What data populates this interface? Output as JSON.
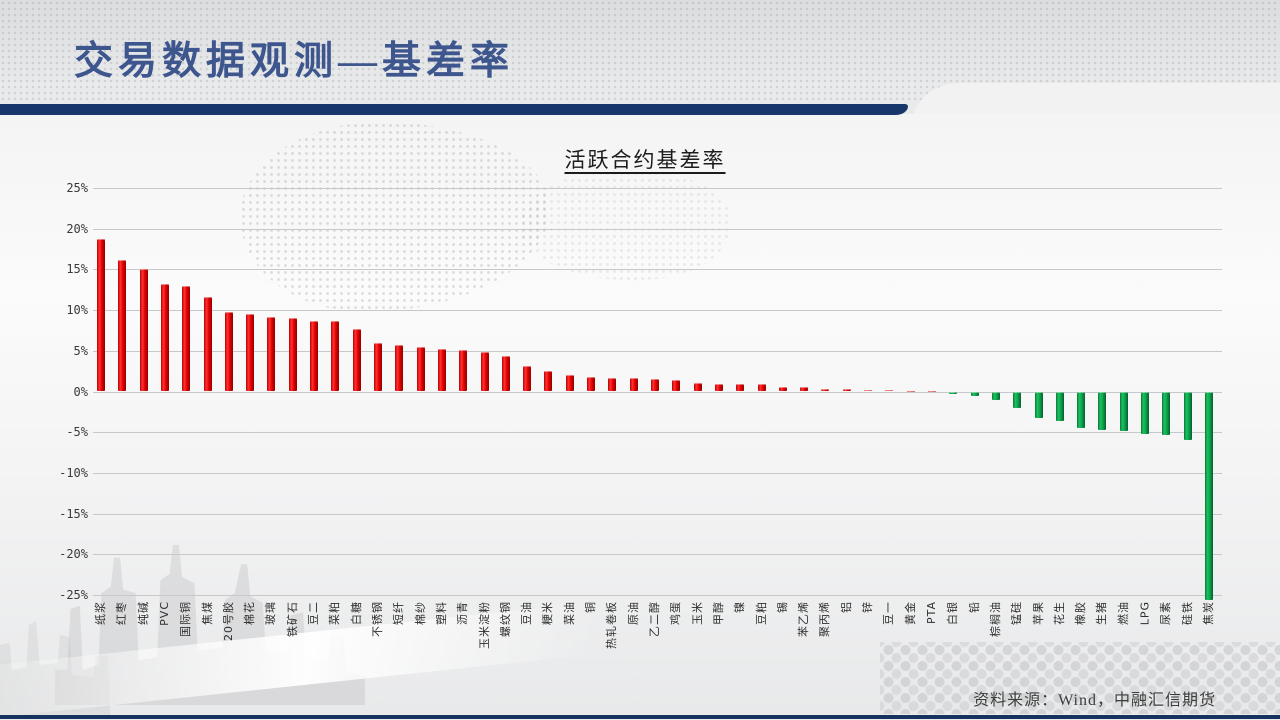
{
  "slide": {
    "title": "交易数据观测—基差率",
    "source_note": "资料来源：Wind，中融汇信期货"
  },
  "colors": {
    "accent_navy": "#17376b",
    "title_blue": "#3e568e",
    "positive_bar": "#e60000",
    "negative_bar": "#0ba34c",
    "background": "#e9eaeb"
  },
  "chart_data": {
    "type": "bar",
    "title": "活跃合约基差率",
    "xlabel": "",
    "ylabel": "",
    "ylim": [
      -25,
      25
    ],
    "grid": true,
    "legend": "none",
    "y_ticks": [
      "25%",
      "20%",
      "15%",
      "10%",
      "5%",
      "0%",
      "-5%",
      "-10%",
      "-15%",
      "-20%",
      "-25%"
    ],
    "categories": [
      "纸浆",
      "红枣",
      "纯碱",
      "PVC",
      "国际铜",
      "焦煤",
      "20号胶",
      "棉花",
      "玻璃",
      "铁矿石",
      "豆二",
      "菜粕",
      "白糖",
      "不锈钢",
      "短纤",
      "棉纱",
      "塑料",
      "沥青",
      "玉米淀粉",
      "螺纹钢",
      "豆油",
      "粳米",
      "菜油",
      "铜",
      "热轧卷板",
      "原油",
      "乙二醇",
      "鸡蛋",
      "玉米",
      "甲醇",
      "镍",
      "豆粕",
      "锡",
      "苯乙烯",
      "聚丙烯",
      "铝",
      "锌",
      "豆一",
      "黄金",
      "PTA",
      "白银",
      "铅",
      "棕榈油",
      "锰硅",
      "苹果",
      "花生",
      "橡胶",
      "生猪",
      "燃油",
      "LPG",
      "尿素",
      "硅铁",
      "焦炭"
    ],
    "values": [
      18.7,
      16.2,
      15.0,
      13.2,
      12.9,
      11.6,
      9.8,
      9.5,
      9.2,
      9.0,
      8.7,
      8.6,
      7.7,
      5.9,
      5.7,
      5.5,
      5.2,
      5.1,
      4.9,
      4.4,
      3.1,
      2.5,
      2.0,
      1.8,
      1.65,
      1.6,
      1.55,
      1.45,
      1.0,
      0.95,
      0.95,
      0.9,
      0.6,
      0.55,
      0.35,
      0.25,
      0.2,
      0.15,
      0.1,
      0.05,
      -0.25,
      -0.6,
      -1.0,
      -2.0,
      -3.3,
      -3.6,
      -4.5,
      -4.7,
      -4.8,
      -5.2,
      -5.3,
      -6.0,
      -25.6
    ]
  }
}
